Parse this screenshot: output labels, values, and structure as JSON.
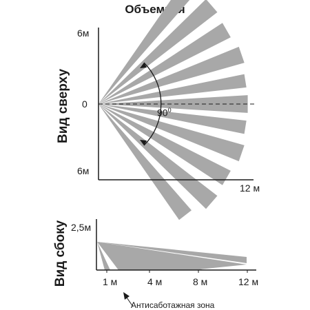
{
  "title": "Объемная",
  "top_view": {
    "label": "Вид сверху",
    "y_top": "6м",
    "y_mid": "0",
    "y_bottom": "6м",
    "x_end": "12 м",
    "angle": "90",
    "angle_unit": "0"
  },
  "side_view": {
    "label": "Вид сбоку",
    "y_height": "2,5м",
    "x_ticks": [
      "1 м",
      "4 м",
      "8 м",
      "12 м"
    ]
  },
  "anti_tamper_label": "Антисаботажная зона",
  "colors": {
    "zone_fill": "#a8a8a8",
    "axis": "#1a1a1a",
    "background": "#ffffff"
  }
}
